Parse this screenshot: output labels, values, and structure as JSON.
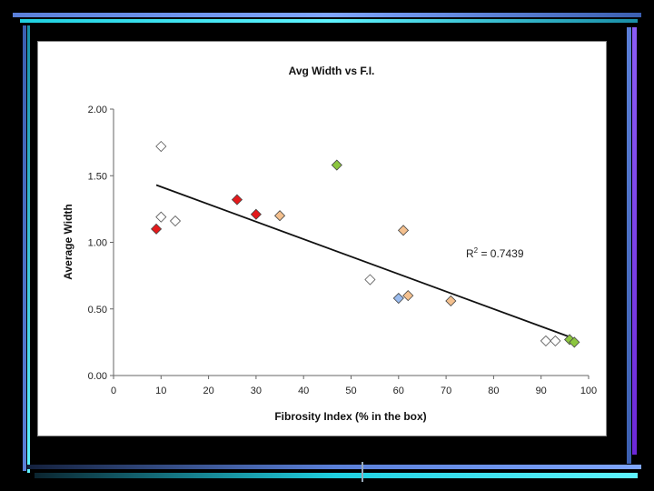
{
  "chart_data": {
    "type": "scatter",
    "title": "Avg Width vs F.I.",
    "xlabel": "Fibrosity Index (% in the box)",
    "ylabel": "Average Width",
    "xlim": [
      0,
      100
    ],
    "ylim": [
      0,
      2.0
    ],
    "xticks": [
      "0",
      "10",
      "20",
      "30",
      "40",
      "50",
      "60",
      "70",
      "80",
      "90",
      "100"
    ],
    "yticks": [
      "0.00",
      "0.50",
      "1.00",
      "1.50",
      "2.00"
    ],
    "grid": false,
    "trendline": {
      "label_base": "R",
      "label_sup": "2",
      "label_rest": " = 0.7439",
      "x": [
        9,
        96
      ],
      "y": [
        1.43,
        0.29
      ]
    },
    "points": [
      {
        "x": 10,
        "y": 1.72,
        "color": "#ffffff"
      },
      {
        "x": 10,
        "y": 1.19,
        "color": "#ffffff"
      },
      {
        "x": 13,
        "y": 1.16,
        "color": "#ffffff"
      },
      {
        "x": 9,
        "y": 1.1,
        "color": "#e31a1c"
      },
      {
        "x": 26,
        "y": 1.32,
        "color": "#e31a1c"
      },
      {
        "x": 30,
        "y": 1.21,
        "color": "#e31a1c"
      },
      {
        "x": 35,
        "y": 1.2,
        "color": "#f4c08e"
      },
      {
        "x": 47,
        "y": 1.58,
        "color": "#8cc63f"
      },
      {
        "x": 61,
        "y": 1.09,
        "color": "#f4c08e"
      },
      {
        "x": 54,
        "y": 0.72,
        "color": "#ffffff"
      },
      {
        "x": 60,
        "y": 0.58,
        "color": "#99bbee"
      },
      {
        "x": 62,
        "y": 0.6,
        "color": "#f4c08e"
      },
      {
        "x": 71,
        "y": 0.56,
        "color": "#f4c08e"
      },
      {
        "x": 91,
        "y": 0.26,
        "color": "#ffffff"
      },
      {
        "x": 93,
        "y": 0.26,
        "color": "#ffffff"
      },
      {
        "x": 96,
        "y": 0.27,
        "color": "#8cc63f"
      },
      {
        "x": 97,
        "y": 0.25,
        "color": "#8cc63f"
      }
    ]
  }
}
